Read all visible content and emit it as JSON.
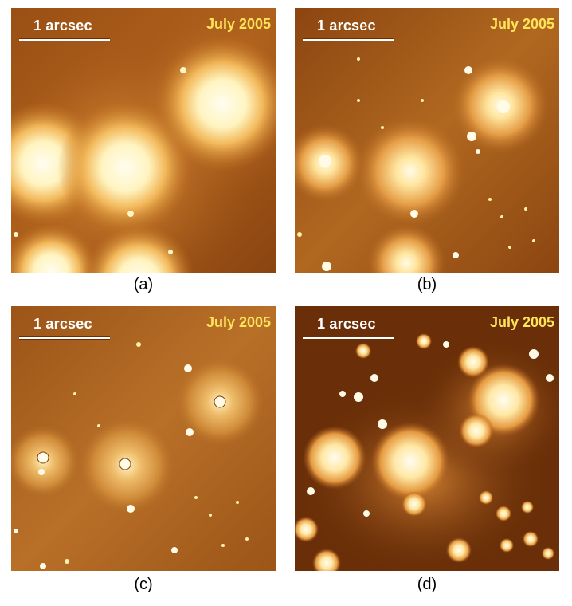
{
  "panels": [
    {
      "id": "a",
      "caption": "(a)",
      "scale_label": "1 arcsec",
      "date": "July 2005"
    },
    {
      "id": "b",
      "caption": "(b)",
      "scale_label": "1 arcsec",
      "date": "July 2005"
    },
    {
      "id": "c",
      "caption": "(c)",
      "scale_label": "1 arcsec",
      "date": "July 2005"
    },
    {
      "id": "d",
      "caption": "(d)",
      "scale_label": "1 arcsec",
      "date": "July 2005"
    }
  ],
  "colors": {
    "background": "#ffffff",
    "image_dark": "#6a2f08",
    "image_mid": "#c0701e",
    "image_bright": "#fff6c8",
    "scale_text": "#ffffff",
    "date_text": "#ffe45a"
  }
}
